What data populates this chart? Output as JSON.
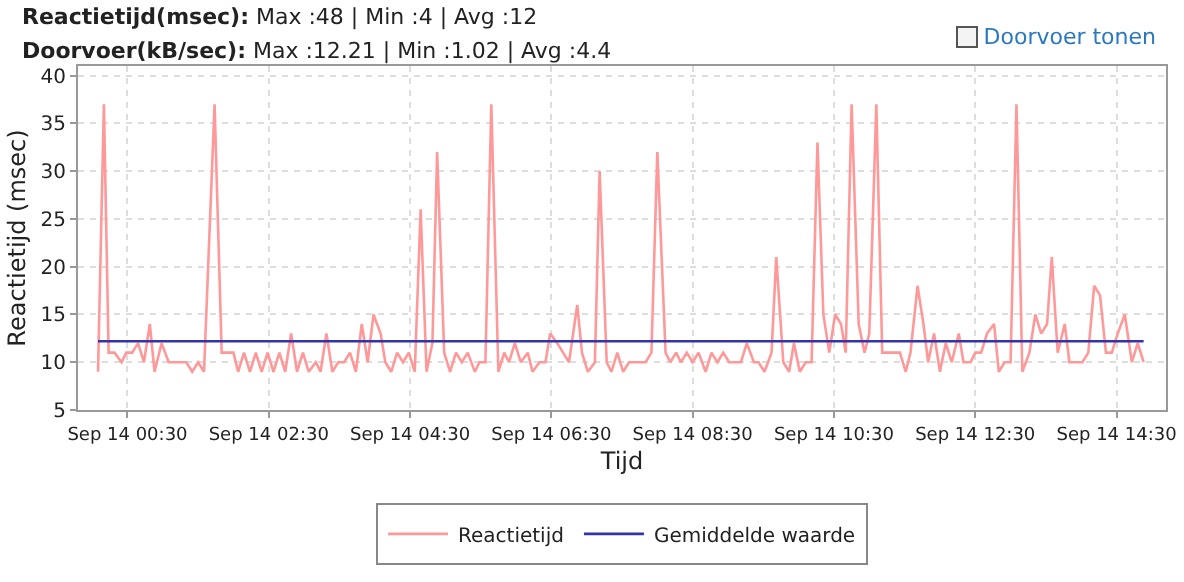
{
  "chart_data": {
    "type": "line",
    "title": "Reactietijd(msec): Max :48 | Min :4 | Avg :12",
    "subtitle": "Doorvoer(kB/sec): Max :12.21 | Min :1.02 | Avg :4.4",
    "xlabel": "Tijd",
    "ylabel": "Reactietijd (msec)",
    "annotations": [
      "Doorvoer tonen"
    ],
    "xlim": [
      "--09-13T23:48",
      "--09-14T15:12"
    ],
    "xticks": [
      {
        "value": "--09-14T00:30",
        "label": "Sep 14 00:30"
      },
      {
        "value": "--09-14T02:30",
        "label": "Sep 14 02:30"
      },
      {
        "value": "--09-14T04:30",
        "label": "Sep 14 04:30"
      },
      {
        "value": "--09-14T06:30",
        "label": "Sep 14 06:30"
      },
      {
        "value": "--09-14T08:30",
        "label": "Sep 14 08:30"
      },
      {
        "value": "--09-14T10:30",
        "label": "Sep 14 10:30"
      },
      {
        "value": "--09-14T12:30",
        "label": "Sep 14 12:30"
      },
      {
        "value": "--09-14T14:30",
        "label": "Sep 14 14:30"
      }
    ],
    "ylim": [
      5,
      41
    ],
    "yticks": [
      5,
      10,
      15,
      20,
      25,
      30,
      35,
      40
    ],
    "grid": true,
    "legend": "bottom",
    "marker": "none",
    "line_style": "solid",
    "series": [
      {
        "name": "Reactietijd",
        "color": "#ff9999",
        "x": [
          "--09-14T00:05",
          "--09-14T00:10",
          "--09-14T00:14",
          "--09-14T00:19",
          "--09-14T00:25",
          "--09-14T00:29",
          "--09-14T00:34",
          "--09-14T00:39",
          "--09-14T00:44",
          "--09-14T00:49",
          "--09-14T00:53",
          "--09-14T00:59",
          "--09-14T01:05",
          "--09-14T01:20",
          "--09-14T01:25",
          "--09-14T01:30",
          "--09-14T01:35",
          "--09-14T01:44",
          "--09-14T01:50",
          "--09-14T02:00",
          "--09-14T02:04",
          "--09-14T02:09",
          "--09-14T02:14",
          "--09-14T02:19",
          "--09-14T02:24",
          "--09-14T02:29",
          "--09-14T02:34",
          "--09-14T02:39",
          "--09-14T02:44",
          "--09-14T02:49",
          "--09-14T02:54",
          "--09-14T02:59",
          "--09-14T03:04",
          "--09-14T03:10",
          "--09-14T03:14",
          "--09-14T03:19",
          "--09-14T03:24",
          "--09-14T03:29",
          "--09-14T03:34",
          "--09-14T03:39",
          "--09-14T03:44",
          "--09-14T03:49",
          "--09-14T03:54",
          "--09-14T03:59",
          "--09-14T04:05",
          "--09-14T04:09",
          "--09-14T04:14",
          "--09-14T04:19",
          "--09-14T04:24",
          "--09-14T04:29",
          "--09-14T04:34",
          "--09-14T04:39",
          "--09-14T04:44",
          "--09-14T04:49",
          "--09-14T04:53",
          "--09-14T04:59",
          "--09-14T05:04",
          "--09-14T05:09",
          "--09-14T05:14",
          "--09-14T05:19",
          "--09-14T05:25",
          "--09-14T05:29",
          "--09-14T05:34",
          "--09-14T05:39",
          "--09-14T05:45",
          "--09-14T05:50",
          "--09-14T05:54",
          "--09-14T05:59",
          "--09-14T06:04",
          "--09-14T06:10",
          "--09-14T06:14",
          "--09-14T06:20",
          "--09-14T06:25",
          "--09-14T06:29",
          "--09-14T06:35",
          "--09-14T06:45",
          "--09-14T06:52",
          "--09-14T06:56",
          "--09-14T07:01",
          "--09-14T07:07",
          "--09-14T07:11",
          "--09-14T07:17",
          "--09-14T07:21",
          "--09-14T07:26",
          "--09-14T07:31",
          "--09-14T07:36",
          "--09-14T07:50",
          "--09-14T07:55",
          "--09-14T08:00",
          "--09-14T08:07",
          "--09-14T08:11",
          "--09-14T08:16",
          "--09-14T08:20",
          "--09-14T08:25",
          "--09-14T08:30",
          "--09-14T08:35",
          "--09-14T08:41",
          "--09-14T08:46",
          "--09-14T08:51",
          "--09-14T08:56",
          "--09-14T09:01",
          "--09-14T09:11",
          "--09-14T09:16",
          "--09-14T09:22",
          "--09-14T09:26",
          "--09-14T09:31",
          "--09-14T09:37",
          "--09-14T09:41",
          "--09-14T09:47",
          "--09-14T09:52",
          "--09-14T09:56",
          "--09-14T10:01",
          "--09-14T10:06",
          "--09-14T10:11",
          "--09-14T10:16",
          "--09-14T10:21",
          "--09-14T10:26",
          "--09-14T10:31",
          "--09-14T10:36",
          "--09-14T10:40",
          "--09-14T10:45",
          "--09-14T10:51",
          "--09-14T10:56",
          "--09-14T11:00",
          "--09-14T11:06",
          "--09-14T11:11",
          "--09-14T11:26",
          "--09-14T11:31",
          "--09-14T11:35",
          "--09-14T11:41",
          "--09-14T11:46",
          "--09-14T11:50",
          "--09-14T11:55",
          "--09-14T12:00",
          "--09-14T12:05",
          "--09-14T12:10",
          "--09-14T12:16",
          "--09-14T12:20",
          "--09-14T12:26",
          "--09-14T12:30",
          "--09-14T12:35",
          "--09-14T12:40",
          "--09-14T12:46",
          "--09-14T12:50",
          "--09-14T12:55",
          "--09-14T13:00",
          "--09-14T13:05",
          "--09-14T13:10",
          "--09-14T13:16",
          "--09-14T13:21",
          "--09-14T13:26",
          "--09-14T13:31",
          "--09-14T13:35",
          "--09-14T13:40",
          "--09-14T13:46",
          "--09-14T13:50",
          "--09-14T14:01",
          "--09-14T14:06",
          "--09-14T14:11",
          "--09-14T14:16",
          "--09-14T14:21",
          "--09-14T14:26",
          "--09-14T14:31",
          "--09-14T14:37",
          "--09-14T14:43",
          "--09-14T14:48",
          "--09-14T14:53"
        ],
        "values": [
          9,
          37,
          11,
          11,
          10,
          11,
          11,
          12,
          10,
          14,
          9,
          12,
          10,
          10,
          9,
          10,
          9,
          37,
          11,
          11,
          9,
          11,
          9,
          11,
          9,
          11,
          9,
          11,
          9,
          13,
          9,
          11,
          9,
          10,
          9,
          13,
          9,
          10,
          10,
          11,
          9,
          14,
          10,
          15,
          13,
          10,
          9,
          11,
          10,
          11,
          9,
          26,
          9,
          12,
          32,
          11,
          9,
          11,
          10,
          11,
          9,
          10,
          10,
          37,
          9,
          11,
          10,
          12,
          10,
          11,
          9,
          10,
          10,
          13,
          12,
          10,
          16,
          11,
          9,
          10,
          30,
          10,
          9,
          11,
          9,
          10,
          10,
          11,
          32,
          11,
          10,
          11,
          10,
          11,
          10,
          11,
          9,
          11,
          10,
          11,
          10,
          10,
          12,
          10,
          10,
          9,
          11,
          21,
          10,
          9,
          12,
          9,
          10,
          10,
          33,
          15,
          11,
          15,
          14,
          11,
          37,
          14,
          11,
          13,
          37,
          11,
          11,
          9,
          11,
          18,
          14,
          10,
          13,
          9,
          12,
          10,
          13,
          10,
          10,
          11,
          11,
          13,
          14,
          9,
          10,
          10,
          37,
          9,
          11,
          15,
          13,
          14,
          21,
          11,
          14,
          10,
          10,
          11,
          18,
          17,
          11,
          11,
          13,
          15,
          10,
          12,
          10
        ]
      },
      {
        "name": "Gemiddelde waarde",
        "color": "#3333aa",
        "x": [
          "--09-14T00:05",
          "--09-14T14:53"
        ],
        "values": [
          12.2,
          12.2
        ]
      }
    ]
  }
}
